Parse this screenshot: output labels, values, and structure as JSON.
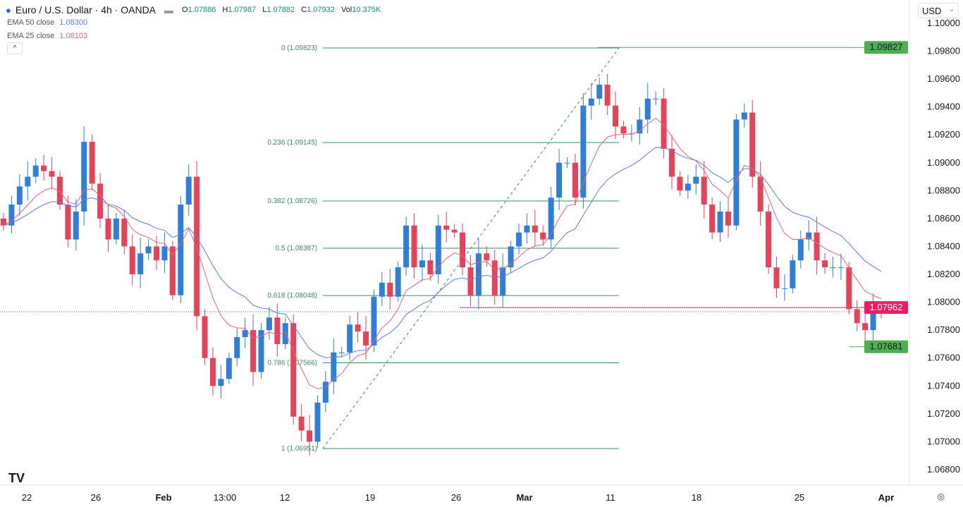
{
  "header": {
    "symbol_icon": "euro-flag-icon",
    "title": "Euro / U.S. Dollar · 4h · OANDA",
    "o_label": "O",
    "o": "1.07886",
    "h_label": "H",
    "h": "1.07987",
    "l_label": "L",
    "l": "1.07882",
    "c_label": "C",
    "c": "1.07932",
    "vol_label": "Vol",
    "vol": "10.375K"
  },
  "indicators": [
    {
      "name": "EMA",
      "params": "50 close",
      "value": "1.08300",
      "color": "#5b7ce6"
    },
    {
      "name": "EMA",
      "params": "25 close",
      "value": "1.08103",
      "color": "#e8637f"
    }
  ],
  "collapse_icon": "chevron-up-icon",
  "currency": "USD",
  "chart_data": {
    "type": "candlestick",
    "up_color": "#2f7fd8",
    "down_color": "#e8425a",
    "ylim": [
      1.0674,
      1.1015
    ],
    "y_ticks": [
      "1.10000",
      "1.09800",
      "1.09600",
      "1.09400",
      "1.09200",
      "1.09000",
      "1.08800",
      "1.08600",
      "1.08400",
      "1.08200",
      "1.08000",
      "1.07800",
      "1.07600",
      "1.07400",
      "1.07200",
      "1.07000",
      "1.06800"
    ],
    "x_labels": [
      "22",
      "26",
      "Feb",
      "13:00",
      "12",
      "19",
      "26",
      "Mar",
      "11",
      "18",
      "25",
      "Apr"
    ],
    "closes": [
      1.0855,
      1.087,
      1.0883,
      1.089,
      1.0898,
      1.0894,
      1.089,
      1.087,
      1.0845,
      1.0865,
      1.0915,
      1.0885,
      1.086,
      1.0845,
      1.086,
      1.084,
      1.082,
      1.0835,
      1.084,
      1.083,
      1.084,
      1.0805,
      1.087,
      1.089,
      1.079,
      1.076,
      1.074,
      1.0745,
      1.076,
      1.0775,
      1.078,
      1.075,
      1.078,
      1.0789,
      1.077,
      1.0785,
      1.0718,
      1.0708,
      1.07,
      1.0728,
      1.0743,
      1.0764,
      1.0764,
      1.0784,
      1.0779,
      1.0769,
      1.0804,
      1.0814,
      1.0804,
      1.0825,
      1.0855,
      1.0825,
      1.083,
      1.082,
      1.0855,
      1.0852,
      1.085,
      1.0825,
      1.0805,
      1.0835,
      1.083,
      1.0805,
      1.0825,
      1.084,
      1.085,
      1.0855,
      1.085,
      1.0845,
      1.0875,
      1.09,
      1.09,
      1.0875,
      1.0941,
      1.0946,
      1.0956,
      1.0941,
      1.0926,
      1.0921,
      1.0921,
      1.0931,
      1.0946,
      1.0946,
      1.091,
      1.089,
      1.088,
      1.0885,
      1.089,
      1.087,
      1.085,
      1.0865,
      1.0855,
      1.0931,
      1.0936,
      1.089,
      1.0865,
      1.0825,
      1.081,
      1.081,
      1.083,
      1.0845,
      1.085,
      1.083,
      1.0825,
      1.0825,
      1.0825,
      1.0795,
      1.0785,
      1.078,
      1.0795,
      1.0793
    ],
    "fib": {
      "levels": [
        {
          "ratio": "0",
          "price": 1.09823,
          "label": "0 (1.09823)"
        },
        {
          "ratio": "0.236",
          "price": 1.09145,
          "label": "0.236 (1.09145)"
        },
        {
          "ratio": "0.382",
          "price": 1.08726,
          "label": "0.382 (1.08726)"
        },
        {
          "ratio": "0.5",
          "price": 1.08387,
          "label": "0.5 (1.08387)"
        },
        {
          "ratio": "0.618",
          "price": 1.08048,
          "label": "0.618 (1.08048)"
        },
        {
          "ratio": "0.786",
          "price": 1.07566,
          "label": "0.786 (1.07566)"
        },
        {
          "ratio": "1",
          "price": 1.06951,
          "label": "1 (1.06951)"
        }
      ],
      "color": "#3e8f5e"
    },
    "price_labels": [
      {
        "price": 1.09827,
        "label": "1.09827",
        "color": "#4caf50"
      },
      {
        "price": 1.07962,
        "label": "1.07962",
        "color": "#e91e63"
      },
      {
        "price": 1.07681,
        "label": "1.07681",
        "color": "#4caf50"
      }
    ],
    "current_price": 1.07932
  },
  "footer": {
    "logo": "TV",
    "settings_icon": "eye-icon"
  }
}
